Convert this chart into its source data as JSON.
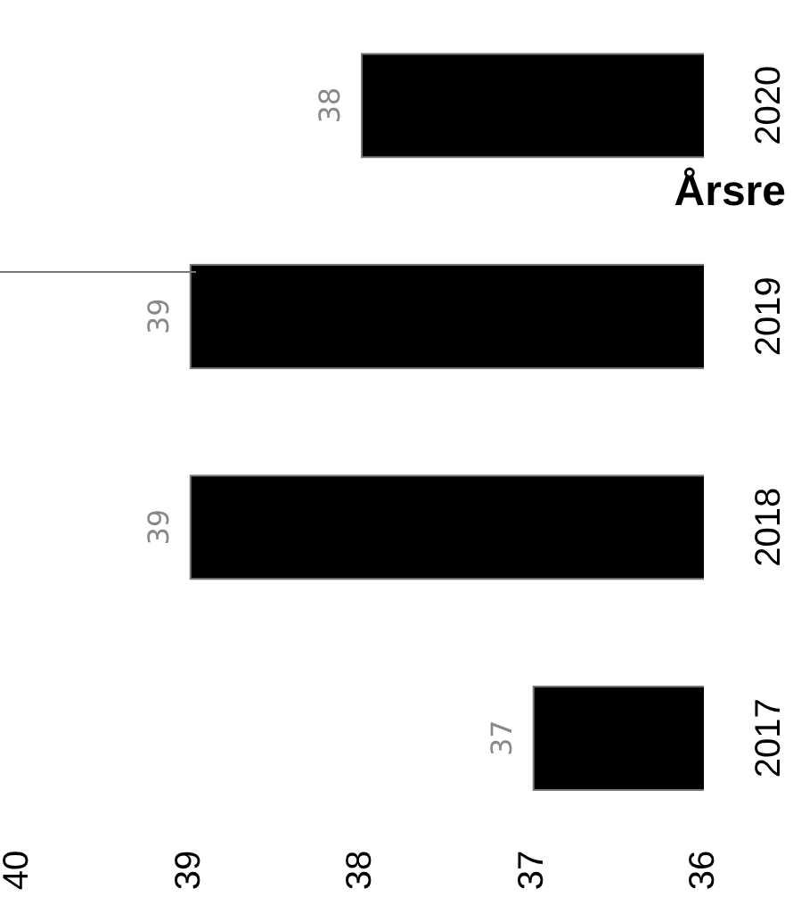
{
  "chart_data": {
    "type": "bar",
    "orientation": "horizontal",
    "title": "Årsre",
    "categories": [
      "2020",
      "2019",
      "2018",
      "2017"
    ],
    "values": [
      38,
      39,
      39,
      37
    ],
    "color": "#000000",
    "xlim": [
      40,
      36
    ],
    "xticks": [
      40,
      39,
      38,
      37,
      36
    ],
    "grid": false,
    "legend": false,
    "data_labels": true
  }
}
